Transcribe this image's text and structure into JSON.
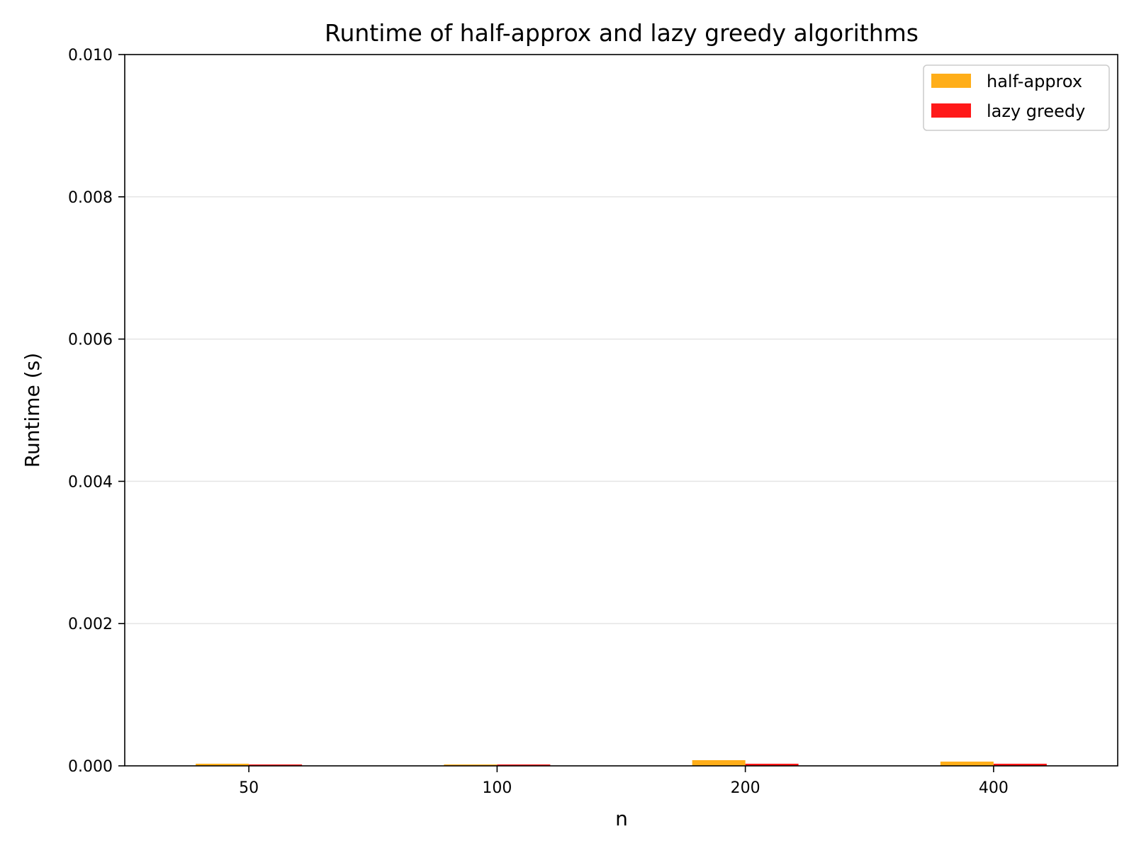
{
  "chart_data": {
    "type": "bar",
    "title": "Runtime of half-approx and lazy greedy algorithms",
    "xlabel": "n",
    "ylabel": "Runtime (s)",
    "categories": [
      "50",
      "100",
      "200",
      "400"
    ],
    "series": [
      {
        "name": "half-approx",
        "color": "#FFA500",
        "values": [
          3e-05,
          2e-05,
          8e-05,
          6e-05
        ]
      },
      {
        "name": "lazy greedy",
        "color": "#FF0000",
        "values": [
          2e-05,
          2e-05,
          3e-05,
          3e-05
        ]
      }
    ],
    "ylim": [
      0,
      0.01
    ],
    "yticks": [
      "0.000",
      "0.002",
      "0.004",
      "0.006",
      "0.008",
      "0.010"
    ],
    "grid": "horizontal",
    "legend_position": "top-right"
  }
}
